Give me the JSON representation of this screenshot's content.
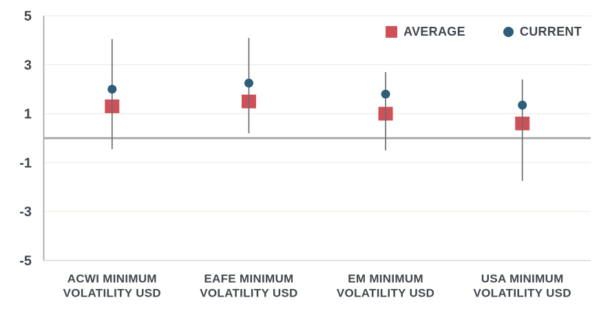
{
  "chart_data": {
    "type": "scatter",
    "subtype": "dot-and-range",
    "categories": [
      {
        "line1": "ACWI MINIMUM",
        "line2": "VOLATILITY USD"
      },
      {
        "line1": "EAFE MINIMUM",
        "line2": "VOLATILITY USD"
      },
      {
        "line1": "EM MINIMUM",
        "line2": "VOLATILITY USD"
      },
      {
        "line1": "USA MINIMUM",
        "line2": "VOLATILITY USD"
      }
    ],
    "series": [
      {
        "name": "AVERAGE",
        "marker": "square",
        "color": "#ce5158",
        "values": [
          1.3,
          1.5,
          1.0,
          0.6
        ]
      },
      {
        "name": "CURRENT",
        "marker": "circle",
        "color": "#2e5e78",
        "values": [
          2.0,
          2.25,
          1.8,
          1.35
        ]
      }
    ],
    "range_high": [
      4.05,
      4.1,
      2.7,
      2.4
    ],
    "range_low": [
      -0.45,
      0.2,
      -0.5,
      -1.75
    ],
    "ylim": [
      -5,
      5
    ],
    "yticks": [
      5,
      3,
      1,
      -1,
      -3,
      -5
    ],
    "grid_values": [
      5,
      3,
      1,
      -1,
      -3
    ],
    "zero_line": 0,
    "grid": true,
    "legend_position": "top-right",
    "colors": {
      "grid": "#f3efe9",
      "baseline": "#d9d6d1",
      "axis": "#a7a9ac",
      "zero": "#a7a9ac",
      "whisker": "#686c71",
      "text": "#42474d"
    }
  }
}
